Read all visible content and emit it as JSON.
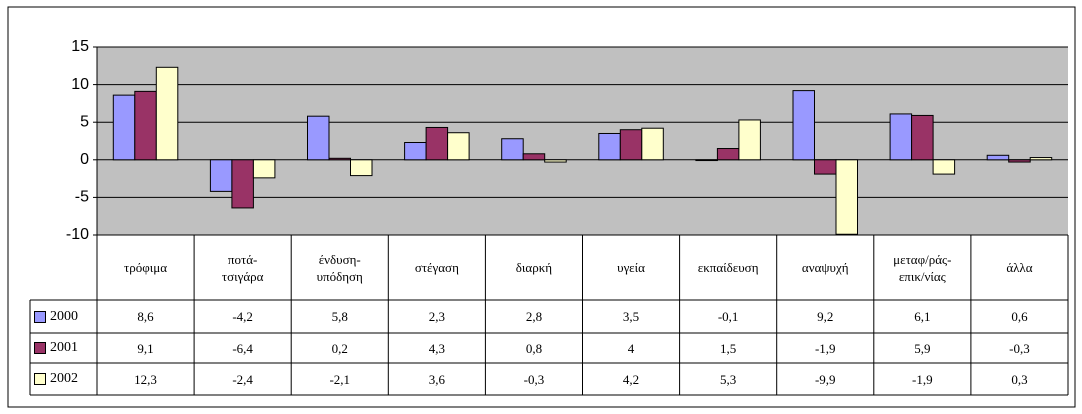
{
  "chart_data": {
    "type": "bar",
    "categories": [
      "τρόφιμα",
      "ποτά-\nτσιγάρα",
      "ένδυση-\nυπόδηση",
      "στέγαση",
      "διαρκή",
      "υγεία",
      "εκπαίδευση",
      "αναψυχή",
      "μεταφ/ράς-\nεπικ/νίας",
      "άλλα"
    ],
    "series": [
      {
        "name": "2000",
        "color": "#9999ff",
        "values": [
          8.6,
          -4.2,
          5.8,
          2.3,
          2.8,
          3.5,
          -0.1,
          9.2,
          6.1,
          0.6
        ],
        "value_labels": [
          "8,6",
          "-4,2",
          "5,8",
          "2,3",
          "2,8",
          "3,5",
          "-0,1",
          "9,2",
          "6,1",
          "0,6"
        ]
      },
      {
        "name": "2001",
        "color": "#993366",
        "values": [
          9.1,
          -6.4,
          0.2,
          4.3,
          0.8,
          4,
          1.5,
          -1.9,
          5.9,
          -0.3
        ],
        "value_labels": [
          "9,1",
          "-6,4",
          "0,2",
          "4,3",
          "0,8",
          "4",
          "1,5",
          "-1,9",
          "5,9",
          "-0,3"
        ]
      },
      {
        "name": "2002",
        "color": "#ffffcc",
        "values": [
          12.3,
          -2.4,
          -2.1,
          3.6,
          -0.3,
          4.2,
          5.3,
          -9.9,
          -1.9,
          0.3
        ],
        "value_labels": [
          "12,3",
          "-2,4",
          "-2,1",
          "3,6",
          "-0,3",
          "4,2",
          "5,3",
          "-9,9",
          "-1,9",
          "0,3"
        ]
      }
    ],
    "ylim": [
      -10,
      15
    ],
    "yticks": [
      -10,
      -5,
      0,
      5,
      10,
      15
    ],
    "grid": true
  }
}
